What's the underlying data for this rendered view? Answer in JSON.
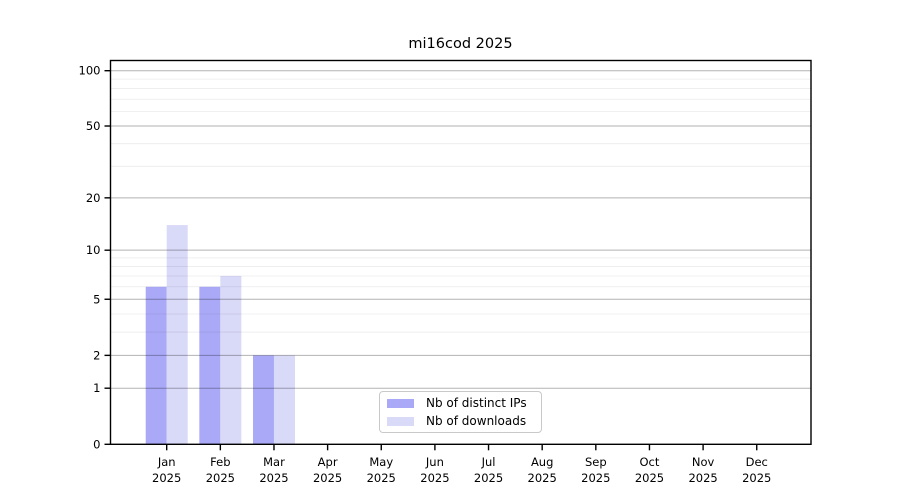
{
  "chart_data": {
    "type": "bar",
    "title": "mi16cod 2025",
    "categories": [
      "Jan",
      "Feb",
      "Mar",
      "Apr",
      "May",
      "Jun",
      "Jul",
      "Aug",
      "Sep",
      "Oct",
      "Nov",
      "Dec"
    ],
    "category_year": "2025",
    "series": [
      {
        "name": "Nb of distinct IPs",
        "color": "#a9a9f7",
        "values": [
          6,
          6,
          2,
          0,
          0,
          0,
          0,
          0,
          0,
          0,
          0,
          0
        ]
      },
      {
        "name": "Nb of downloads",
        "color": "#d9d9f8",
        "values": [
          14,
          7,
          2,
          0,
          0,
          0,
          0,
          0,
          0,
          0,
          0,
          0
        ]
      }
    ],
    "yticks": [
      100,
      50,
      20,
      10,
      5,
      2,
      1,
      0
    ],
    "minor_yticks": [
      3,
      4,
      6,
      7,
      8,
      9,
      30,
      40,
      60,
      70,
      80,
      90
    ],
    "scale": "log1p",
    "ylim": [
      0,
      100
    ],
    "grid": "on",
    "legend_position": "bottom-center",
    "colors": {
      "axis": "#000000",
      "grid_major": "rgba(0,0,0,0.30)",
      "grid_minor": "rgba(0,0,0,0.08)",
      "tick_label": "#000000",
      "background": "#ffffff"
    }
  }
}
